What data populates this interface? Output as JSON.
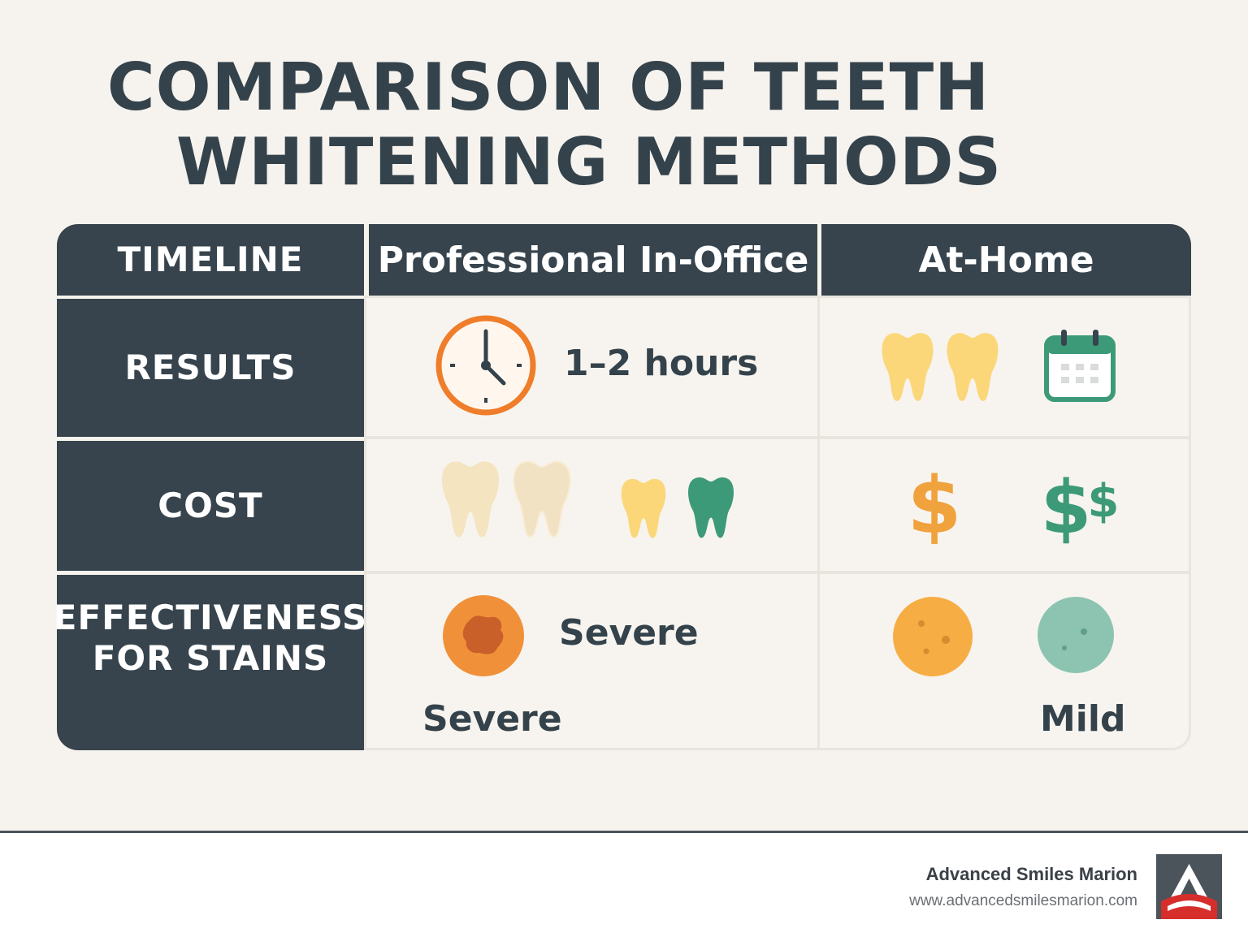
{
  "title": {
    "line1": "COMPARISON OF TEETH",
    "line2": "WHITENING METHODS"
  },
  "table": {
    "corner_label": "TIMELINE",
    "columns": [
      "Professional In-Office",
      "At-Home"
    ],
    "rows": [
      {
        "label": "RESULTS",
        "professional": {
          "text": "1–2 hours",
          "icons": [
            "clock-icon"
          ]
        },
        "at_home": {
          "icons": [
            "tooth-icon",
            "tooth-icon",
            "calendar-icon"
          ]
        }
      },
      {
        "label": "COST",
        "professional": {
          "icons": [
            "tooth-icon",
            "tooth-icon",
            "tooth-icon",
            "tooth-icon"
          ]
        },
        "at_home": {
          "icons": [
            "dollar-icon",
            "double-dollar-icon"
          ]
        }
      },
      {
        "label_line1": "EFFECTIVENESS",
        "label_line2": "FOR STAINS",
        "professional": {
          "text_top": "Severe",
          "text_bottom": "Severe",
          "icons": [
            "stain-icon"
          ]
        },
        "at_home": {
          "text": "Mild",
          "icons": [
            "stain-icon",
            "stain-icon"
          ]
        }
      }
    ]
  },
  "colors": {
    "dark": "#37444d",
    "orange": "#f0a23c",
    "clock_orange": "#ef7d2a",
    "yellow": "#fbd77a",
    "cream": "#f4e4c0",
    "green": "#3d9a78",
    "teal": "#8cc4b1"
  },
  "footer": {
    "brand": "Advanced Smiles Marion",
    "url": "www.advancedsmilesmarion.com",
    "logo_icon": "a-triangle-logo-icon"
  }
}
